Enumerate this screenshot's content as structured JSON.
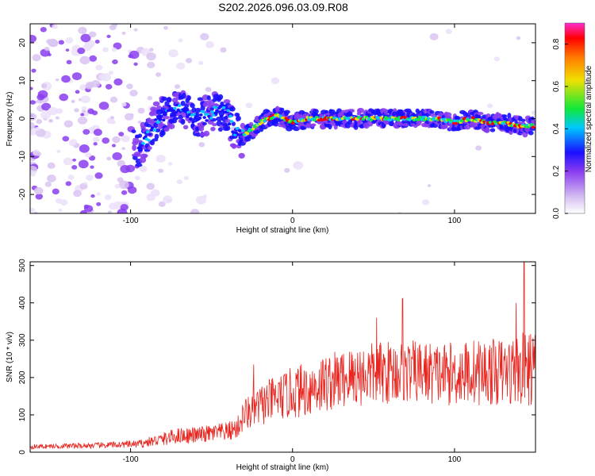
{
  "title": "S202.2026.096.03.09.R08",
  "colors": {
    "snr_line": "#e8251f",
    "axis": "#000000",
    "cmap": [
      "#ffffff",
      "#d9c4f2",
      "#8a3df0",
      "#1a10ff",
      "#00c8ff",
      "#10e83a",
      "#f0e000",
      "#ff7a00",
      "#ff0000",
      "#ff2bd0"
    ]
  },
  "chart_data": [
    {
      "type": "heatmap",
      "name": "spectrogram",
      "xlabel": "Height of straight line (km)",
      "ylabel": "Frequency (Hz)",
      "xlim": [
        -162,
        150
      ],
      "ylim": [
        -25,
        25
      ],
      "xticks": [
        -100,
        0,
        100
      ],
      "yticks": [
        -20,
        -10,
        0,
        10,
        20
      ],
      "ridge_trace": {
        "x": [
          -95,
          -88,
          -82,
          -76,
          -70,
          -64,
          -58,
          -52,
          -46,
          -40,
          -36,
          -32,
          -26,
          -20,
          -15,
          -10,
          -5,
          0,
          10,
          20,
          30,
          40,
          50,
          60,
          70,
          80,
          90,
          100,
          110,
          120,
          130,
          140,
          148
        ],
        "freq": [
          -8,
          -4,
          0,
          2,
          3,
          1,
          0,
          1,
          2,
          1,
          -3,
          -5,
          -3,
          -1,
          0,
          1,
          0,
          -1,
          0,
          0,
          0,
          0,
          0,
          0,
          0,
          0,
          0,
          -1,
          0,
          -1,
          -1,
          -2,
          -2
        ]
      },
      "colorbar": {
        "label": "Normalized spectral amplitude",
        "range": [
          0,
          0.9
        ],
        "ticks": [
          "0.0",
          "0.2",
          "0.4",
          "0.6",
          "0.8"
        ]
      }
    },
    {
      "type": "line",
      "name": "snr",
      "xlabel": "Height of straight line (km)",
      "ylabel": "SNR (10 * v/v)",
      "xlim": [
        -162,
        150
      ],
      "ylim": [
        0,
        510
      ],
      "xticks": [
        -100,
        0,
        100
      ],
      "yticks": [
        0,
        100,
        200,
        300,
        400,
        500
      ],
      "envelope": {
        "x": [
          -162,
          -120,
          -95,
          -80,
          -70,
          -60,
          -50,
          -40,
          -34,
          -30,
          -25,
          -20,
          -15,
          -10,
          -5,
          0,
          10,
          20,
          30,
          40,
          50,
          60,
          70,
          80,
          90,
          100,
          110,
          120,
          130,
          140,
          150
        ],
        "base": [
          15,
          18,
          22,
          35,
          45,
          45,
          50,
          55,
          65,
          100,
          110,
          125,
          135,
          145,
          150,
          160,
          170,
          185,
          195,
          205,
          210,
          215,
          215,
          215,
          210,
          210,
          215,
          215,
          215,
          220,
          225
        ],
        "amp": [
          6,
          8,
          10,
          18,
          22,
          22,
          24,
          26,
          30,
          45,
          50,
          55,
          60,
          60,
          65,
          70,
          75,
          80,
          80,
          85,
          85,
          85,
          85,
          85,
          85,
          85,
          90,
          90,
          90,
          100,
          100
        ]
      },
      "peaks": [
        {
          "x": 68,
          "y": 412
        },
        {
          "x": 138,
          "y": 400
        },
        {
          "x": 143,
          "y": 510
        },
        {
          "x": -24,
          "y": 235
        },
        {
          "x": 52,
          "y": 360
        }
      ]
    }
  ]
}
